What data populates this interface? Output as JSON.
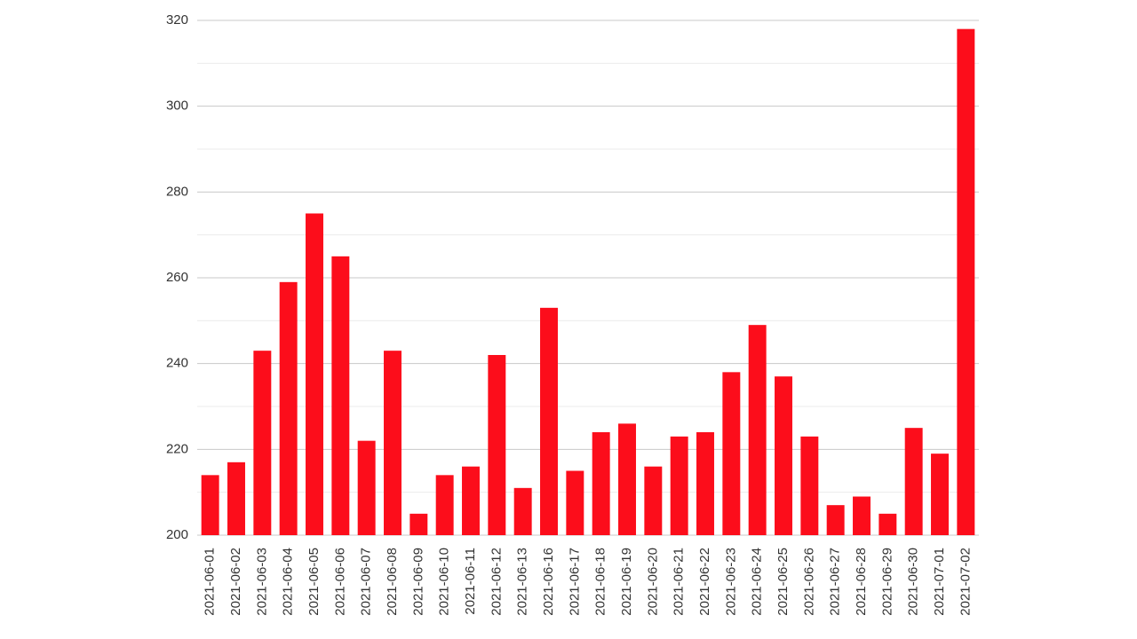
{
  "chart_data": {
    "type": "bar",
    "categories": [
      "2021-06-01",
      "2021-06-02",
      "2021-06-03",
      "2021-06-04",
      "2021-06-05",
      "2021-06-06",
      "2021-06-07",
      "2021-06-08",
      "2021-06-09",
      "2021-06-10",
      "2021-06-11",
      "2021-06-12",
      "2021-06-13",
      "2021-06-16",
      "2021-06-17",
      "2021-06-18",
      "2021-06-19",
      "2021-06-20",
      "2021-06-21",
      "2021-06-22",
      "2021-06-23",
      "2021-06-24",
      "2021-06-25",
      "2021-06-26",
      "2021-06-27",
      "2021-06-28",
      "2021-06-29",
      "2021-06-30",
      "2021-07-01",
      "2021-07-02"
    ],
    "values": [
      214,
      217,
      243,
      259,
      275,
      265,
      222,
      243,
      205,
      214,
      216,
      242,
      211,
      253,
      215,
      224,
      226,
      216,
      223,
      224,
      238,
      249,
      237,
      223,
      207,
      209,
      205,
      225,
      219,
      318
    ],
    "color": "#fc0d1b",
    "ylim": [
      200,
      320
    ],
    "yticks": [
      200,
      220,
      240,
      260,
      280,
      300,
      320
    ],
    "minor_yticks": [
      210,
      230,
      250,
      270,
      290,
      310
    ],
    "grid": true
  }
}
